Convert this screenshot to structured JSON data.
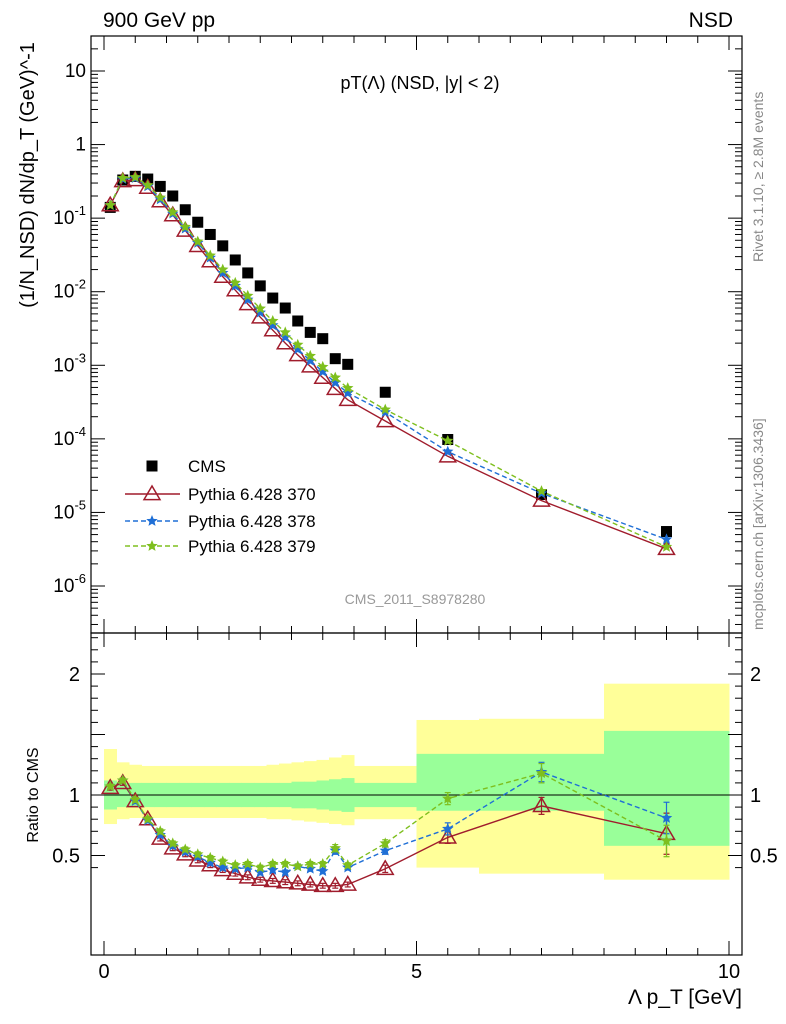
{
  "header": {
    "left": "900 GeV pp",
    "right": "NSD"
  },
  "side_labels": {
    "rivet": "Rivet 3.1.10, ≥ 2.8M events",
    "mcplots": "mcplots.cern.ch [arXiv:1306.3436]"
  },
  "chart_data": [
    {
      "type": "scatter",
      "panel": "main",
      "title": "pT(Λ) (NSD, |y| < 2)",
      "ylabel": "(1/N_NSD) dN/dp_T (GeV)^-1",
      "yscale": "log",
      "ylim": [
        2.5e-07,
        30
      ],
      "xlim": [
        -0.25,
        10
      ],
      "watermark": "CMS_2011_S8978280",
      "y_tick_labels": [
        "10^-6",
        "10^-5",
        "10^-4",
        "10^-3",
        "10^-2",
        "10^-1",
        "1",
        "10"
      ],
      "legend": [
        "CMS",
        "Pythia 6.428 370",
        "Pythia 6.428 378",
        "Pythia 6.428 379"
      ],
      "legend_placement": "lower-left",
      "series": [
        {
          "name": "CMS",
          "color": "#000000",
          "marker": "square",
          "line": "none",
          "x": [
            0.1,
            0.3,
            0.5,
            0.7,
            0.9,
            1.1,
            1.3,
            1.5,
            1.7,
            1.9,
            2.1,
            2.3,
            2.5,
            2.7,
            2.9,
            3.1,
            3.3,
            3.5,
            3.7,
            3.9,
            4.5,
            5.5,
            7.0,
            9.0
          ],
          "y": [
            0.14,
            0.33,
            0.37,
            0.34,
            0.27,
            0.2,
            0.13,
            0.088,
            0.06,
            0.042,
            0.027,
            0.018,
            0.012,
            0.0082,
            0.006,
            0.004,
            0.0028,
            0.0023,
            0.00123,
            0.00103,
            0.00043,
            9.8e-05,
            1.75e-05,
            5.5e-06
          ]
        },
        {
          "name": "Pythia 6.428 370",
          "color": "#a01c2c",
          "marker": "open-triangle",
          "line": "solid",
          "x": [
            0.1,
            0.3,
            0.5,
            0.7,
            0.9,
            1.1,
            1.3,
            1.5,
            1.7,
            1.9,
            2.1,
            2.3,
            2.5,
            2.7,
            2.9,
            3.1,
            3.3,
            3.5,
            3.7,
            3.9,
            4.5,
            5.5,
            7.0,
            9.0
          ],
          "y": [
            0.15,
            0.32,
            0.33,
            0.26,
            0.17,
            0.11,
            0.068,
            0.042,
            0.026,
            0.016,
            0.0105,
            0.0068,
            0.0045,
            0.003,
            0.002,
            0.00138,
            0.00097,
            0.00068,
            0.00048,
            0.00034,
            0.000175,
            5.8e-05,
            1.45e-05,
            3.2e-06
          ]
        },
        {
          "name": "Pythia 6.428 378",
          "color": "#1f6fd6",
          "marker": "star",
          "line": "dashed",
          "x": [
            0.1,
            0.3,
            0.5,
            0.7,
            0.9,
            1.1,
            1.3,
            1.5,
            1.7,
            1.9,
            2.1,
            2.3,
            2.5,
            2.7,
            2.9,
            3.1,
            3.3,
            3.5,
            3.7,
            3.9,
            4.5,
            5.5,
            7.0,
            9.0
          ],
          "y": [
            0.15,
            0.34,
            0.35,
            0.27,
            0.18,
            0.115,
            0.072,
            0.046,
            0.029,
            0.018,
            0.012,
            0.0078,
            0.0052,
            0.0035,
            0.0024,
            0.00165,
            0.00115,
            0.00082,
            0.00058,
            0.00042,
            0.00023,
            6.7e-05,
            1.82e-05,
            4.3e-06
          ]
        },
        {
          "name": "Pythia 6.428 379",
          "color": "#7ebf1e",
          "marker": "star",
          "line": "dashed",
          "x": [
            0.1,
            0.3,
            0.5,
            0.7,
            0.9,
            1.1,
            1.3,
            1.5,
            1.7,
            1.9,
            2.1,
            2.3,
            2.5,
            2.7,
            2.9,
            3.1,
            3.3,
            3.5,
            3.7,
            3.9,
            4.5,
            5.5,
            7.0,
            9.0
          ],
          "y": [
            0.15,
            0.35,
            0.36,
            0.28,
            0.19,
            0.12,
            0.076,
            0.048,
            0.031,
            0.02,
            0.0132,
            0.0088,
            0.0059,
            0.004,
            0.0028,
            0.0019,
            0.00134,
            0.00095,
            0.00068,
            0.00049,
            0.00025,
            9.4e-05,
            1.95e-05,
            3.4e-06
          ]
        }
      ]
    },
    {
      "type": "line",
      "panel": "ratio",
      "ylabel": "Ratio to CMS",
      "xlabel": "Λ p_T [GeV]",
      "ylim": [
        0.35,
        2.35
      ],
      "xlim": [
        -0.25,
        10
      ],
      "x_ticks": [
        0,
        5,
        10
      ],
      "y_ticks": [
        0.5,
        1,
        2
      ],
      "reference_line": 1,
      "bands": {
        "edges": [
          0,
          0.2,
          0.4,
          0.6,
          0.8,
          1.0,
          1.2,
          1.4,
          1.6,
          1.8,
          2.0,
          2.2,
          2.4,
          2.6,
          2.8,
          3.0,
          3.2,
          3.4,
          3.6,
          3.8,
          4.0,
          5.0,
          6.0,
          8.0,
          10.0
        ],
        "green_lo": [
          0.88,
          0.9,
          0.9,
          0.9,
          0.9,
          0.9,
          0.9,
          0.9,
          0.9,
          0.9,
          0.9,
          0.9,
          0.9,
          0.9,
          0.9,
          0.89,
          0.89,
          0.88,
          0.87,
          0.86,
          0.9,
          0.87,
          0.87,
          0.58
        ],
        "green_hi": [
          1.12,
          1.1,
          1.1,
          1.1,
          1.1,
          1.1,
          1.1,
          1.1,
          1.1,
          1.1,
          1.1,
          1.1,
          1.1,
          1.1,
          1.1,
          1.11,
          1.11,
          1.12,
          1.13,
          1.14,
          1.1,
          1.34,
          1.34,
          1.53
        ],
        "yellow_lo": [
          0.76,
          0.8,
          0.81,
          0.81,
          0.81,
          0.81,
          0.81,
          0.81,
          0.81,
          0.81,
          0.81,
          0.81,
          0.81,
          0.8,
          0.8,
          0.79,
          0.78,
          0.77,
          0.76,
          0.75,
          0.8,
          0.4,
          0.35,
          0.3
        ],
        "yellow_hi": [
          1.38,
          1.27,
          1.25,
          1.24,
          1.24,
          1.24,
          1.24,
          1.24,
          1.24,
          1.24,
          1.24,
          1.24,
          1.24,
          1.25,
          1.26,
          1.27,
          1.28,
          1.29,
          1.31,
          1.33,
          1.24,
          1.62,
          1.63,
          1.92
        ]
      },
      "series": [
        {
          "name": "Pythia 6.428 370",
          "color": "#a01c2c",
          "marker": "open-triangle",
          "line": "solid",
          "x": [
            0.1,
            0.3,
            0.5,
            0.7,
            0.9,
            1.1,
            1.3,
            1.5,
            1.7,
            1.9,
            2.1,
            2.3,
            2.5,
            2.7,
            2.9,
            3.1,
            3.3,
            3.5,
            3.7,
            3.9,
            4.5,
            5.5,
            7.0,
            9.0
          ],
          "y": [
            1.06,
            1.1,
            0.95,
            0.8,
            0.64,
            0.56,
            0.51,
            0.46,
            0.42,
            0.38,
            0.35,
            0.32,
            0.3,
            0.29,
            0.28,
            0.27,
            0.26,
            0.25,
            0.25,
            0.26,
            0.39,
            0.65,
            0.91,
            0.68
          ],
          "err": [
            0.02,
            0.02,
            0.02,
            0.02,
            0.02,
            0.02,
            0.02,
            0.02,
            0.02,
            0.02,
            0.02,
            0.02,
            0.02,
            0.02,
            0.02,
            0.02,
            0.02,
            0.02,
            0.02,
            0.02,
            0.03,
            0.05,
            0.07,
            0.17
          ]
        },
        {
          "name": "Pythia 6.428 378",
          "color": "#1f6fd6",
          "marker": "star",
          "line": "dashed",
          "x": [
            0.1,
            0.3,
            0.5,
            0.7,
            0.9,
            1.1,
            1.3,
            1.5,
            1.7,
            1.9,
            2.1,
            2.3,
            2.5,
            2.7,
            2.9,
            3.1,
            3.3,
            3.5,
            3.7,
            3.9,
            4.5,
            5.5,
            7.0,
            9.0
          ],
          "y": [
            1.07,
            1.12,
            0.95,
            0.79,
            0.67,
            0.58,
            0.53,
            0.49,
            0.44,
            0.4,
            0.39,
            0.4,
            0.36,
            0.38,
            0.36,
            0.41,
            0.39,
            0.37,
            0.54,
            0.4,
            0.54,
            0.72,
            1.19,
            0.81
          ],
          "err": [
            0.02,
            0.02,
            0.02,
            0.02,
            0.02,
            0.02,
            0.02,
            0.02,
            0.02,
            0.02,
            0.02,
            0.02,
            0.02,
            0.02,
            0.02,
            0.02,
            0.02,
            0.02,
            0.03,
            0.02,
            0.03,
            0.05,
            0.08,
            0.13
          ]
        },
        {
          "name": "Pythia 6.428 379",
          "color": "#7ebf1e",
          "marker": "star",
          "line": "dashed",
          "x": [
            0.1,
            0.3,
            0.5,
            0.7,
            0.9,
            1.1,
            1.3,
            1.5,
            1.7,
            1.9,
            2.1,
            2.3,
            2.5,
            2.7,
            2.9,
            3.1,
            3.3,
            3.5,
            3.7,
            3.9,
            4.5,
            5.5,
            7.0,
            9.0
          ],
          "y": [
            1.07,
            1.12,
            0.96,
            0.8,
            0.7,
            0.6,
            0.55,
            0.51,
            0.48,
            0.45,
            0.42,
            0.43,
            0.4,
            0.43,
            0.43,
            0.41,
            0.43,
            0.43,
            0.56,
            0.42,
            0.6,
            0.97,
            1.18,
            0.62
          ],
          "err": [
            0.02,
            0.02,
            0.02,
            0.02,
            0.02,
            0.02,
            0.02,
            0.02,
            0.02,
            0.02,
            0.02,
            0.02,
            0.02,
            0.02,
            0.02,
            0.02,
            0.02,
            0.02,
            0.03,
            0.02,
            0.03,
            0.05,
            0.08,
            0.13
          ]
        }
      ]
    }
  ]
}
